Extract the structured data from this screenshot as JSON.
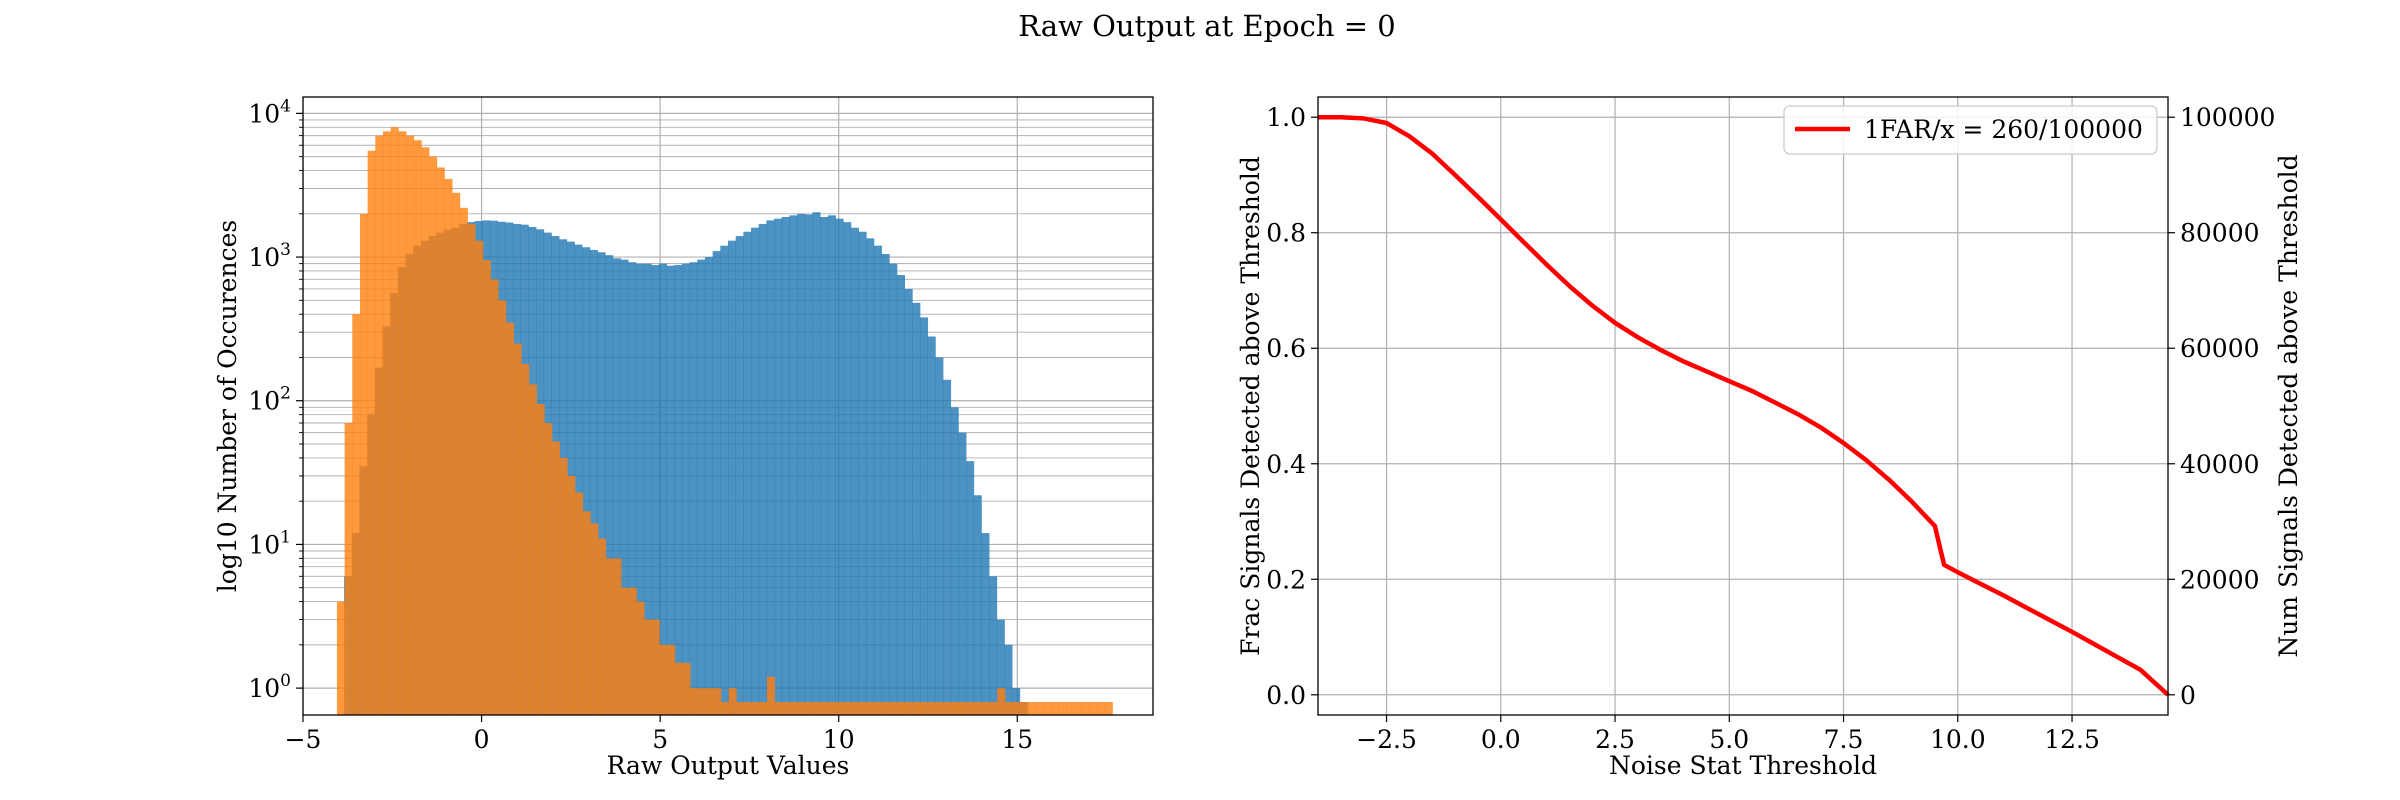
{
  "figure": {
    "title": "Raw Output at Epoch = 0"
  },
  "colors": {
    "blue": "#1f77b4",
    "orange": "#ff7f0e",
    "red": "#ff0000",
    "grid": "#b0b0b0"
  },
  "chart_data": [
    {
      "type": "bar",
      "subtype": "histogram",
      "xlabel": "Raw Output Values",
      "ylabel": "log10 Number of Occurences",
      "xlim": [
        -5,
        18.8
      ],
      "ylim": [
        0.65,
        13000
      ],
      "yscale": "log",
      "xticks": [
        -5,
        0,
        5,
        10,
        15
      ],
      "yticks": [
        {
          "value": 1,
          "base": "10",
          "exp": "0"
        },
        {
          "value": 10,
          "base": "10",
          "exp": "1"
        },
        {
          "value": 100,
          "base": "10",
          "exp": "2"
        },
        {
          "value": 1000,
          "base": "10",
          "exp": "3"
        },
        {
          "value": 10000,
          "base": "10",
          "exp": "4"
        }
      ],
      "grid": true,
      "bin_width": 0.215,
      "series": [
        {
          "color": "#1f77b4",
          "bin_start": -3.85,
          "values": [
            6,
            12,
            35,
            80,
            170,
            330,
            560,
            850,
            1050,
            1200,
            1300,
            1400,
            1480,
            1550,
            1600,
            1700,
            1750,
            1780,
            1800,
            1790,
            1760,
            1740,
            1700,
            1680,
            1620,
            1560,
            1480,
            1400,
            1330,
            1280,
            1220,
            1170,
            1120,
            1080,
            1030,
            980,
            960,
            920,
            900,
            900,
            880,
            900,
            870,
            880,
            900,
            920,
            960,
            1000,
            1100,
            1200,
            1300,
            1400,
            1500,
            1600,
            1700,
            1800,
            1850,
            1900,
            1950,
            2000,
            1980,
            2050,
            1900,
            1950,
            1850,
            1750,
            1600,
            1500,
            1350,
            1200,
            1050,
            900,
            750,
            600,
            480,
            380,
            280,
            200,
            140,
            90,
            60,
            38,
            22,
            12,
            6,
            3,
            2,
            1,
            0.8,
            0,
            0,
            0,
            0,
            0,
            0,
            0,
            0,
            0,
            0,
            0,
            0,
            0,
            0,
            0,
            0,
            0,
            0,
            0,
            0,
            0,
            0
          ]
        },
        {
          "color": "#ff7f0e",
          "bin_start": -4.05,
          "values": [
            4,
            70,
            400,
            2000,
            5500,
            7000,
            7500,
            8000,
            7500,
            7000,
            6500,
            5800,
            5000,
            4200,
            3500,
            2800,
            2200,
            1700,
            1300,
            950,
            700,
            500,
            350,
            250,
            180,
            130,
            95,
            70,
            52,
            40,
            30,
            23,
            17,
            14,
            11,
            8,
            8,
            5,
            5,
            4,
            3,
            3,
            2,
            2,
            1.5,
            1.5,
            1,
            1,
            1,
            1,
            0.8,
            1,
            0.8,
            0.8,
            0.8,
            0.8,
            1.2,
            0.8,
            0.8,
            0.8,
            0.8,
            0.8,
            0.8,
            0.8,
            0.8,
            0.8,
            0.8,
            0.8,
            0.8,
            0.8,
            0.8,
            0.8,
            0.8,
            0.8,
            0.8,
            0.8,
            0.8,
            0.8,
            0.8,
            0.8,
            0.8,
            0.8,
            0.8,
            0.8,
            0.8,
            0.8,
            1,
            0.8,
            0.8,
            0.8,
            0.8,
            0.8,
            0.8,
            0.8,
            0.8,
            0.8,
            0.8,
            0.8,
            0.8,
            0.8,
            0.8
          ]
        }
      ]
    },
    {
      "type": "line",
      "xlabel": "Noise Stat Threshold",
      "ylabel": "Frac Signals Detected above Threshold",
      "y2label": "Num Signals Detected above Threshold",
      "xlim": [
        -4,
        14.6
      ],
      "ylim": [
        -0.035,
        1.035
      ],
      "y2lim": [
        -3500,
        103500
      ],
      "xticks": [
        -2.5,
        0.0,
        2.5,
        5.0,
        7.5,
        10.0,
        12.5
      ],
      "xtick_labels": [
        "−2.5",
        "0.0",
        "2.5",
        "5.0",
        "7.5",
        "10.0",
        "12.5"
      ],
      "yticks": [
        0.0,
        0.2,
        0.4,
        0.6,
        0.8,
        1.0
      ],
      "ytick_labels": [
        "0.0",
        "0.2",
        "0.4",
        "0.6",
        "0.8",
        "1.0"
      ],
      "y2ticks": [
        0,
        20000,
        40000,
        60000,
        80000,
        100000
      ],
      "y2tick_labels": [
        "0",
        "20000",
        "40000",
        "60000",
        "80000",
        "100000"
      ],
      "grid": true,
      "legend": "top-right",
      "series": [
        {
          "name": "1FAR/x = 260/100000",
          "color": "#ff0000",
          "x": [
            -4,
            -3.5,
            -3,
            -2.5,
            -2,
            -1.5,
            -1,
            -0.5,
            0,
            0.5,
            1,
            1.5,
            2,
            2.5,
            3,
            3.5,
            4,
            4.5,
            5,
            5.5,
            6,
            6.5,
            7,
            7.5,
            8,
            8.5,
            9,
            9.5,
            9.7,
            10,
            10.5,
            11,
            11.5,
            12,
            12.5,
            13,
            13.5,
            14,
            14.6
          ],
          "y": [
            1.0,
            1.0,
            0.998,
            0.99,
            0.967,
            0.937,
            0.9,
            0.862,
            0.823,
            0.784,
            0.745,
            0.708,
            0.674,
            0.644,
            0.619,
            0.597,
            0.577,
            0.56,
            0.543,
            0.526,
            0.506,
            0.486,
            0.463,
            0.436,
            0.406,
            0.372,
            0.334,
            0.292,
            0.225,
            0.212,
            0.192,
            0.172,
            0.151,
            0.13,
            0.109,
            0.087,
            0.065,
            0.043,
            0.0
          ]
        }
      ]
    }
  ]
}
